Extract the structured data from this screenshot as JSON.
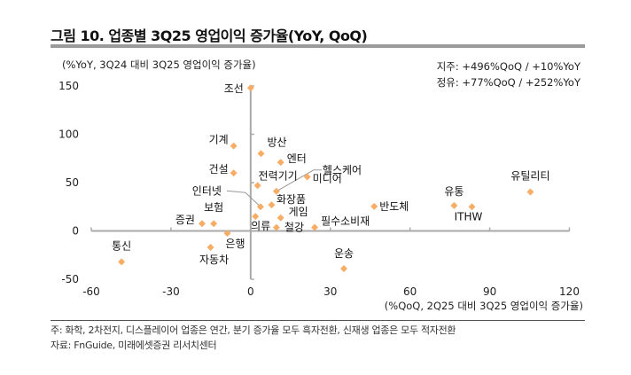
{
  "title": "그림 10. 업종별 3Q25 영업이익 증가율(YoY, QoQ)",
  "footer": {
    "note": "주: 화학, 2차전지, 디스플레이어 업종은 연간, 분기 증가율 모두 흑자전환, 신재생 업종은 모두 적자전환",
    "source": "자료: FnGuide, 미래에셋증권 리서치센터"
  },
  "chart_data": {
    "type": "scatter",
    "title": "",
    "xlabel": "(%QoQ, 2Q25 대비 3Q25 영업이익 증가율)",
    "ylabel": "(%YoY, 3Q24 대비 3Q25 영업이익 증가율)",
    "xlim": [
      -60,
      120
    ],
    "ylim": [
      -50,
      150
    ],
    "xticks": [
      -60,
      -30,
      0,
      30,
      60,
      90,
      120
    ],
    "yticks": [
      150,
      100,
      50,
      0,
      -50
    ],
    "grid": false,
    "marker_color": "#f7ad66",
    "axis_color": "#aaaaaa",
    "annotations": [
      "지주: +496%QoQ / +10%YoY",
      "정유: +77%QoQ  / +252%YoY"
    ],
    "points": [
      {
        "label": "조선",
        "x": 0,
        "y": 148
      },
      {
        "label": "기계",
        "x": -6.4,
        "y": 88
      },
      {
        "label": "건설",
        "x": -6.4,
        "y": 60
      },
      {
        "label": "방산",
        "x": 3.9,
        "y": 80
      },
      {
        "label": "엔터",
        "x": 11.3,
        "y": 71
      },
      {
        "label": "헬스케어",
        "x": 9.7,
        "y": 41
      },
      {
        "label": "미디어",
        "x": 21.3,
        "y": 56
      },
      {
        "label": "전력기기",
        "x": 2.6,
        "y": 47
      },
      {
        "label": "인터넷",
        "x": 3.7,
        "y": 25
      },
      {
        "label": "화장품",
        "x": 7.9,
        "y": 27
      },
      {
        "label": "게임",
        "x": 11.3,
        "y": 13.5
      },
      {
        "label": "의류",
        "x": 1.8,
        "y": 15
      },
      {
        "label": "철강",
        "x": 9.7,
        "y": 3.5
      },
      {
        "label": "필수소비재",
        "x": 24.1,
        "y": 3.7
      },
      {
        "label": "증권",
        "x": -18.3,
        "y": 7.6
      },
      {
        "label": "보험",
        "x": -13.9,
        "y": 7.6
      },
      {
        "label": "은행",
        "x": -8.8,
        "y": -2.4
      },
      {
        "label": "자동차",
        "x": -15.1,
        "y": -17
      },
      {
        "label": "통신",
        "x": -48.6,
        "y": -32
      },
      {
        "label": "운송",
        "x": 35.1,
        "y": -39
      },
      {
        "label": "반도체",
        "x": 46.5,
        "y": 25.4
      },
      {
        "label": "유통",
        "x": 76.6,
        "y": 26.3
      },
      {
        "label": "ITHW",
        "x": 83.3,
        "y": 25
      },
      {
        "label": "유틸리티",
        "x": 105.3,
        "y": 40.4
      }
    ]
  }
}
